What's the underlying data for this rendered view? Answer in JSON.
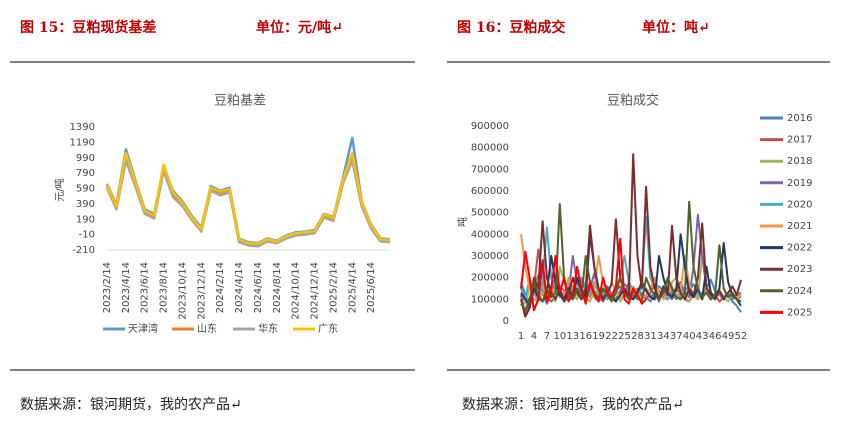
{
  "header": {
    "left_title": "图 15：豆粕现货基差",
    "left_unit": "单位：元/吨↵",
    "right_title": "图 16：豆粕成交",
    "right_unit": "单位：吨↵"
  },
  "source_left": "数据来源：银河期货，我的农产品↵",
  "source_right": "数据来源：银河期货，我的农产品↵",
  "chart_data": [
    {
      "type": "line",
      "title": "豆粕基差",
      "y_label": "元/吨",
      "categories": [
        "2023/2/14",
        null,
        "2023/4/14",
        null,
        "2023/6/14",
        null,
        "2023/8/14",
        null,
        "2023/10/14",
        null,
        "2023/12/14",
        null,
        "2024/2/14",
        null,
        "2024/4/14",
        null,
        "2024/6/14",
        null,
        "2024/8/14",
        null,
        "2024/10/14",
        null,
        "2024/12/14",
        null,
        "2025/2/14",
        null,
        "2025/4/14",
        null,
        "2025/6/14",
        null,
        null
      ],
      "ylim": [
        -210,
        1390
      ],
      "yticks": [
        -210,
        -10,
        190,
        390,
        590,
        790,
        990,
        1190,
        1390
      ],
      "legend": "bottom",
      "series": [
        {
          "name": "天津湾",
          "color": "#5b9bd5",
          "values": [
            650,
            380,
            1100,
            700,
            320,
            260,
            880,
            560,
            420,
            230,
            80,
            620,
            560,
            600,
            -60,
            -110,
            -120,
            -60,
            -90,
            -20,
            20,
            30,
            50,
            260,
            220,
            720,
            1250,
            420,
            120,
            -60,
            -70
          ]
        },
        {
          "name": "山东",
          "color": "#ed7d31",
          "values": [
            620,
            350,
            1000,
            660,
            290,
            230,
            850,
            520,
            390,
            200,
            50,
            590,
            530,
            570,
            -90,
            -130,
            -140,
            -80,
            -110,
            -40,
            0,
            10,
            30,
            230,
            190,
            680,
            1000,
            390,
            90,
            -80,
            -90
          ]
        },
        {
          "name": "华东",
          "color": "#a5a5a5",
          "values": [
            600,
            320,
            950,
            620,
            260,
            200,
            820,
            480,
            360,
            180,
            30,
            560,
            500,
            540,
            -110,
            -150,
            -160,
            -100,
            -120,
            -60,
            -20,
            -10,
            10,
            210,
            170,
            650,
            950,
            360,
            70,
            -100,
            -110
          ]
        },
        {
          "name": "广东",
          "color": "#ffc000",
          "values": [
            640,
            360,
            1050,
            680,
            300,
            240,
            900,
            540,
            400,
            210,
            60,
            600,
            550,
            580,
            -70,
            -120,
            -130,
            -70,
            -100,
            -30,
            10,
            20,
            40,
            250,
            210,
            700,
            1050,
            410,
            110,
            -70,
            -80
          ]
        }
      ]
    },
    {
      "type": "line",
      "title": "豆粕成交",
      "y_label": "吨",
      "x": [
        1,
        2,
        3,
        4,
        5,
        6,
        7,
        8,
        9,
        10,
        11,
        12,
        13,
        14,
        15,
        16,
        17,
        18,
        19,
        20,
        21,
        22,
        23,
        24,
        25,
        26,
        27,
        28,
        29,
        30,
        31,
        32,
        33,
        34,
        35,
        36,
        37,
        38,
        39,
        40,
        41,
        42,
        43,
        44,
        45,
        46,
        47,
        48,
        49,
        50,
        51,
        52
      ],
      "xlim": [
        1,
        52
      ],
      "xticks": [
        1,
        4,
        7,
        10,
        13,
        16,
        19,
        22,
        25,
        28,
        31,
        34,
        37,
        40,
        43,
        46,
        49,
        52
      ],
      "x_tick_labels": [
        "1",
        "4",
        "7",
        "10",
        "13",
        "16",
        "19",
        "22",
        "25",
        "28",
        "31",
        "34",
        "37",
        "40",
        "43",
        "46",
        "49",
        "52"
      ],
      "ylim": [
        0,
        900000
      ],
      "yticks": [
        0,
        100000,
        200000,
        300000,
        400000,
        500000,
        600000,
        700000,
        800000,
        900000
      ],
      "legend": "right",
      "series": [
        {
          "name": "2016",
          "color": "#4f81bd",
          "values": [
            180000,
            120000,
            90000,
            160000,
            210000,
            140000,
            100000,
            130000,
            170000,
            120000,
            90000,
            110000,
            150000,
            130000,
            100000,
            120000,
            140000,
            110000,
            90000,
            130000,
            160000,
            120000,
            100000,
            140000,
            170000,
            150000,
            120000,
            100000,
            130000,
            110000,
            90000,
            120000,
            160000,
            140000,
            110000,
            130000,
            100000,
            150000,
            120000,
            140000,
            170000,
            130000,
            110000,
            150000,
            190000,
            140000,
            120000,
            100000,
            130000,
            90000,
            70000,
            40000
          ]
        },
        {
          "name": "2017",
          "color": "#c0504d",
          "values": [
            120000,
            30000,
            80000,
            150000,
            330000,
            200000,
            120000,
            90000,
            110000,
            160000,
            140000,
            120000,
            100000,
            130000,
            150000,
            120000,
            180000,
            140000,
            110000,
            90000,
            120000,
            100000,
            140000,
            160000,
            120000,
            130000,
            110000,
            150000,
            120000,
            100000,
            130000,
            170000,
            140000,
            110000,
            100000,
            130000,
            150000,
            120000,
            100000,
            90000,
            120000,
            140000,
            110000,
            130000,
            100000,
            120000,
            90000,
            110000,
            130000,
            100000,
            120000,
            110000
          ]
        },
        {
          "name": "2018",
          "color": "#9bbb59",
          "values": [
            100000,
            80000,
            150000,
            120000,
            200000,
            160000,
            110000,
            130000,
            90000,
            250000,
            180000,
            140000,
            120000,
            100000,
            200000,
            160000,
            130000,
            110000,
            150000,
            120000,
            100000,
            180000,
            140000,
            90000,
            120000,
            150000,
            130000,
            100000,
            170000,
            140000,
            110000,
            130000,
            100000,
            150000,
            120000,
            180000,
            200000,
            140000,
            110000,
            90000,
            130000,
            110000,
            300000,
            160000,
            120000,
            100000,
            140000,
            110000,
            90000,
            120000,
            100000,
            110000
          ]
        },
        {
          "name": "2019",
          "color": "#8064a2",
          "values": [
            90000,
            110000,
            60000,
            150000,
            100000,
            130000,
            80000,
            120000,
            200000,
            150000,
            100000,
            130000,
            300000,
            180000,
            120000,
            100000,
            150000,
            220000,
            130000,
            100000,
            160000,
            120000,
            90000,
            140000,
            110000,
            180000,
            130000,
            100000,
            120000,
            150000,
            110000,
            130000,
            90000,
            160000,
            120000,
            100000,
            140000,
            180000,
            130000,
            110000,
            250000,
            490000,
            300000,
            150000,
            120000,
            100000,
            140000,
            110000,
            130000,
            100000,
            120000,
            130000
          ]
        },
        {
          "name": "2020",
          "color": "#4bacc6",
          "values": [
            150000,
            100000,
            200000,
            130000,
            90000,
            180000,
            430000,
            200000,
            150000,
            110000,
            130000,
            100000,
            160000,
            120000,
            200000,
            140000,
            110000,
            180000,
            130000,
            150000,
            100000,
            120000,
            160000,
            200000,
            300000,
            180000,
            140000,
            110000,
            160000,
            480000,
            200000,
            150000,
            110000,
            130000,
            100000,
            150000,
            120000,
            110000,
            140000,
            160000,
            120000,
            130000,
            100000,
            150000,
            110000,
            120000,
            140000,
            100000,
            130000,
            110000,
            120000,
            110000
          ]
        },
        {
          "name": "2021",
          "color": "#f79646",
          "values": [
            400000,
            250000,
            150000,
            100000,
            90000,
            130000,
            110000,
            160000,
            120000,
            140000,
            100000,
            200000,
            150000,
            120000,
            130000,
            110000,
            90000,
            140000,
            300000,
            180000,
            130000,
            110000,
            150000,
            100000,
            140000,
            120000,
            160000,
            130000,
            100000,
            120000,
            150000,
            200000,
            130000,
            100000,
            120000,
            160000,
            110000,
            140000,
            300000,
            170000,
            120000,
            100000,
            130000,
            150000,
            110000,
            120000,
            140000,
            100000,
            130000,
            120000,
            110000,
            120000
          ]
        },
        {
          "name": "2022",
          "color": "#1f3864",
          "values": [
            130000,
            100000,
            70000,
            150000,
            110000,
            90000,
            130000,
            300000,
            180000,
            120000,
            100000,
            150000,
            110000,
            200000,
            140000,
            110000,
            400000,
            250000,
            150000,
            100000,
            130000,
            110000,
            90000,
            120000,
            150000,
            110000,
            100000,
            130000,
            180000,
            140000,
            110000,
            100000,
            300000,
            200000,
            130000,
            110000,
            150000,
            400000,
            250000,
            130000,
            110000,
            150000,
            100000,
            250000,
            130000,
            110000,
            150000,
            360000,
            180000,
            120000,
            100000,
            70000
          ]
        },
        {
          "name": "2023",
          "color": "#7b2c2c",
          "values": [
            100000,
            20000,
            60000,
            200000,
            150000,
            460000,
            200000,
            130000,
            100000,
            150000,
            90000,
            120000,
            200000,
            130000,
            100000,
            150000,
            440000,
            250000,
            150000,
            100000,
            130000,
            170000,
            470000,
            200000,
            130000,
            110000,
            770000,
            300000,
            150000,
            620000,
            250000,
            150000,
            100000,
            160000,
            120000,
            440000,
            200000,
            130000,
            100000,
            150000,
            120000,
            200000,
            450000,
            150000,
            120000,
            100000,
            140000,
            100000,
            130000,
            160000,
            120000,
            190000
          ]
        },
        {
          "name": "2024",
          "color": "#4f6228",
          "values": [
            80000,
            50000,
            100000,
            180000,
            120000,
            90000,
            150000,
            110000,
            130000,
            540000,
            200000,
            120000,
            100000,
            150000,
            110000,
            300000,
            180000,
            130000,
            100000,
            150000,
            120000,
            90000,
            130000,
            200000,
            130000,
            100000,
            150000,
            110000,
            90000,
            200000,
            150000,
            120000,
            100000,
            130000,
            200000,
            150000,
            110000,
            100000,
            130000,
            550000,
            250000,
            150000,
            110000,
            130000,
            100000,
            120000,
            350000,
            150000,
            110000,
            130000,
            100000,
            90000
          ]
        },
        {
          "name": "2025",
          "color": "#ff0000",
          "values": [
            150000,
            320000,
            200000,
            50000,
            100000,
            280000,
            90000,
            150000,
            300000,
            130000,
            200000,
            90000,
            120000,
            250000,
            150000,
            80000,
            180000,
            120000,
            90000,
            200000,
            130000,
            110000,
            160000,
            380000,
            100000,
            80000,
            150000,
            120000,
            80000,
            100000,
            null,
            null,
            null,
            null,
            null,
            null,
            null,
            null,
            null,
            null,
            null,
            null,
            null,
            null,
            null,
            null,
            null,
            null,
            null,
            null,
            null,
            null
          ]
        }
      ]
    }
  ]
}
